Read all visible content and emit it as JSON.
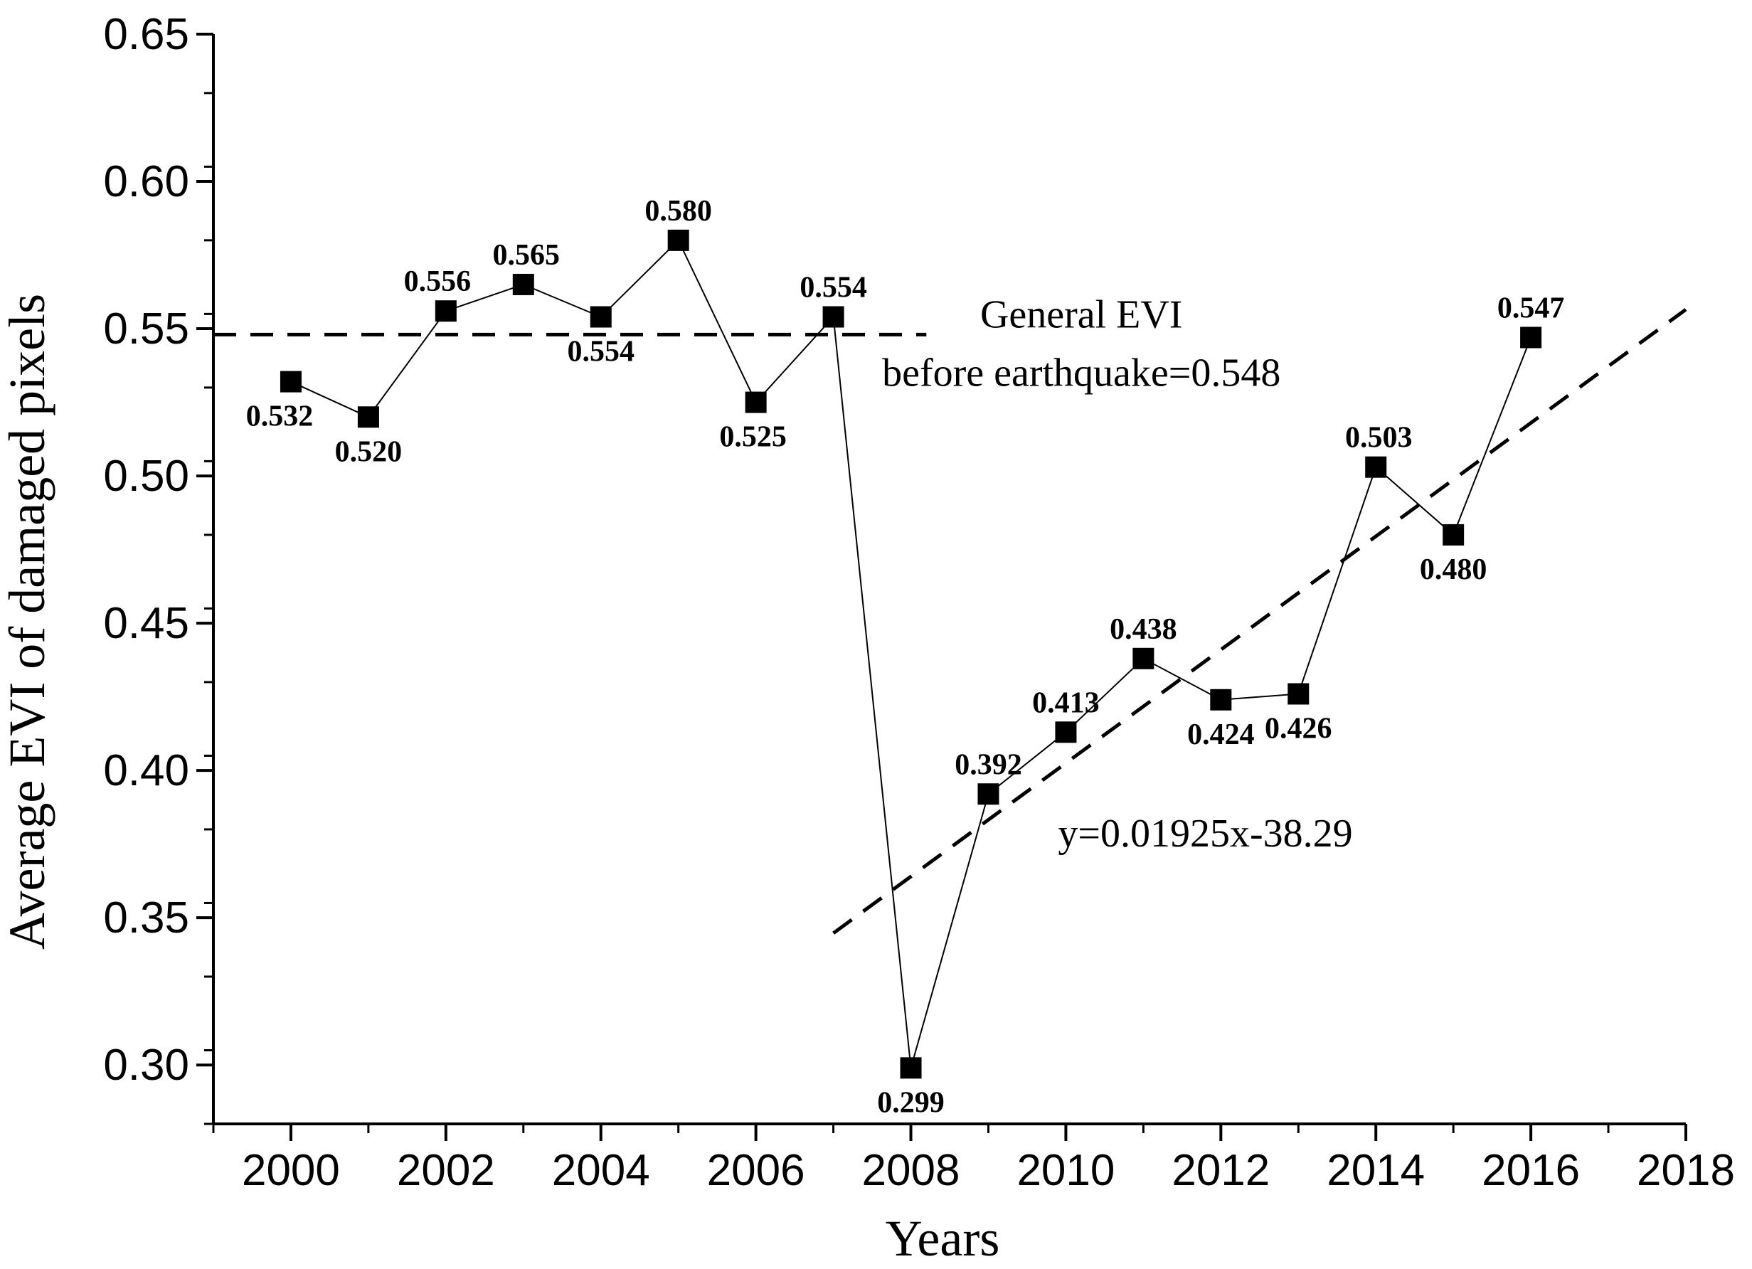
{
  "chart_data": {
    "type": "line",
    "title": "",
    "xlabel": "Years",
    "ylabel": "Average EVI of damaged pixels",
    "xlim": [
      1999,
      2018
    ],
    "ylim": [
      0.28,
      0.65
    ],
    "xticks": [
      2000,
      2002,
      2004,
      2006,
      2008,
      2010,
      2012,
      2014,
      2016,
      2018
    ],
    "xtick_labels": [
      "2000",
      "2002",
      "2004",
      "2006",
      "2008",
      "2010",
      "2012",
      "2014",
      "2016",
      "2018"
    ],
    "yticks": [
      0.3,
      0.35,
      0.4,
      0.45,
      0.5,
      0.55,
      0.6,
      0.65
    ],
    "ytick_labels": [
      "0.30",
      "0.35",
      "0.40",
      "0.45",
      "0.50",
      "0.55",
      "0.60",
      "0.65"
    ],
    "grid": false,
    "series": [
      {
        "name": "Average EVI",
        "marker": "square",
        "color": "#000000",
        "x": [
          2000,
          2001,
          2002,
          2003,
          2004,
          2005,
          2006,
          2007,
          2008,
          2009,
          2010,
          2011,
          2012,
          2013,
          2014,
          2015,
          2016
        ],
        "values": [
          0.532,
          0.52,
          0.556,
          0.565,
          0.554,
          0.58,
          0.525,
          0.554,
          0.299,
          0.392,
          0.413,
          0.438,
          0.424,
          0.426,
          0.503,
          0.48,
          0.547
        ],
        "labels": [
          "0.532",
          "0.520",
          "0.556",
          "0.565",
          "0.554",
          "0.580",
          "0.525",
          "0.554",
          "0.299",
          "0.392",
          "0.413",
          "0.438",
          "0.424",
          "0.426",
          "0.503",
          "0.480",
          "0.547"
        ]
      }
    ],
    "reference_lines": [
      {
        "name": "General EVI before earthquake",
        "style": "dashed",
        "x_start": 1999,
        "x_end": 2008.2,
        "value": 0.548,
        "label_line1": "General EVI",
        "label_line2": "before earthquake=0.548"
      },
      {
        "name": "Trend line",
        "style": "dashed",
        "slope": 0.01925,
        "intercept": -38.29,
        "x_start": 2007,
        "x_end": 2018,
        "label": "y=0.01925x-38.29"
      }
    ]
  }
}
